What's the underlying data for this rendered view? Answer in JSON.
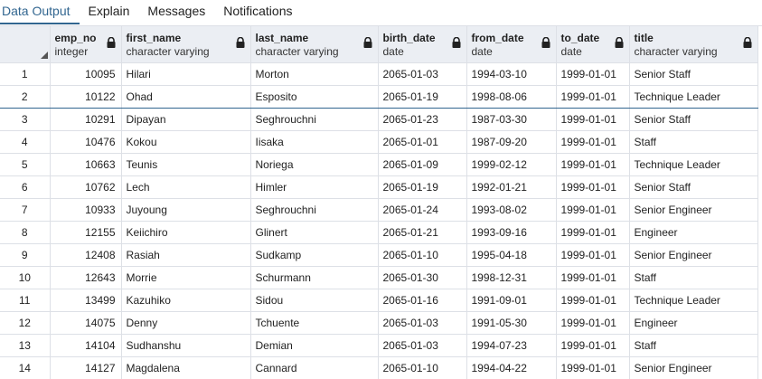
{
  "tabs": [
    {
      "label": "Data Output",
      "active": true
    },
    {
      "label": "Explain",
      "active": false
    },
    {
      "label": "Messages",
      "active": false
    },
    {
      "label": "Notifications",
      "active": false
    }
  ],
  "columns": [
    {
      "name": "emp_no",
      "type": "integer",
      "align": "num"
    },
    {
      "name": "first_name",
      "type": "character varying",
      "align": "text"
    },
    {
      "name": "last_name",
      "type": "character varying",
      "align": "text"
    },
    {
      "name": "birth_date",
      "type": "date",
      "align": "text"
    },
    {
      "name": "from_date",
      "type": "date",
      "align": "text"
    },
    {
      "name": "to_date",
      "type": "date",
      "align": "text"
    },
    {
      "name": "title",
      "type": "character varying",
      "align": "text"
    }
  ],
  "rows": [
    [
      "1",
      "10095",
      "Hilari",
      "Morton",
      "2065-01-03",
      "1994-03-10",
      "1999-01-01",
      "Senior Staff"
    ],
    [
      "2",
      "10122",
      "Ohad",
      "Esposito",
      "2065-01-19",
      "1998-08-06",
      "1999-01-01",
      "Technique Leader"
    ],
    [
      "3",
      "10291",
      "Dipayan",
      "Seghrouchni",
      "2065-01-23",
      "1987-03-30",
      "1999-01-01",
      "Senior Staff"
    ],
    [
      "4",
      "10476",
      "Kokou",
      "Iisaka",
      "2065-01-01",
      "1987-09-20",
      "1999-01-01",
      "Staff"
    ],
    [
      "5",
      "10663",
      "Teunis",
      "Noriega",
      "2065-01-09",
      "1999-02-12",
      "1999-01-01",
      "Technique Leader"
    ],
    [
      "6",
      "10762",
      "Lech",
      "Himler",
      "2065-01-19",
      "1992-01-21",
      "1999-01-01",
      "Senior Staff"
    ],
    [
      "7",
      "10933",
      "Juyoung",
      "Seghrouchni",
      "2065-01-24",
      "1993-08-02",
      "1999-01-01",
      "Senior Engineer"
    ],
    [
      "8",
      "12155",
      "Keiichiro",
      "Glinert",
      "2065-01-21",
      "1993-09-16",
      "1999-01-01",
      "Engineer"
    ],
    [
      "9",
      "12408",
      "Rasiah",
      "Sudkamp",
      "2065-01-10",
      "1995-04-18",
      "1999-01-01",
      "Senior Engineer"
    ],
    [
      "10",
      "12643",
      "Morrie",
      "Schurmann",
      "2065-01-30",
      "1998-12-31",
      "1999-01-01",
      "Staff"
    ],
    [
      "11",
      "13499",
      "Kazuhiko",
      "Sidou",
      "2065-01-16",
      "1991-09-01",
      "1999-01-01",
      "Technique Leader"
    ],
    [
      "12",
      "14075",
      "Denny",
      "Tchuente",
      "2065-01-03",
      "1991-05-30",
      "1999-01-01",
      "Engineer"
    ],
    [
      "13",
      "14104",
      "Sudhanshu",
      "Demian",
      "2065-01-03",
      "1994-07-23",
      "1999-01-01",
      "Staff"
    ],
    [
      "14",
      "14127",
      "Magdalena",
      "Cannard",
      "2065-01-10",
      "1994-04-22",
      "1999-01-01",
      "Senior Engineer"
    ]
  ],
  "selected_row": "2",
  "colors": {
    "accent": "#326690",
    "header_bg": "#ebeef3",
    "grid": "#dde0e6"
  }
}
